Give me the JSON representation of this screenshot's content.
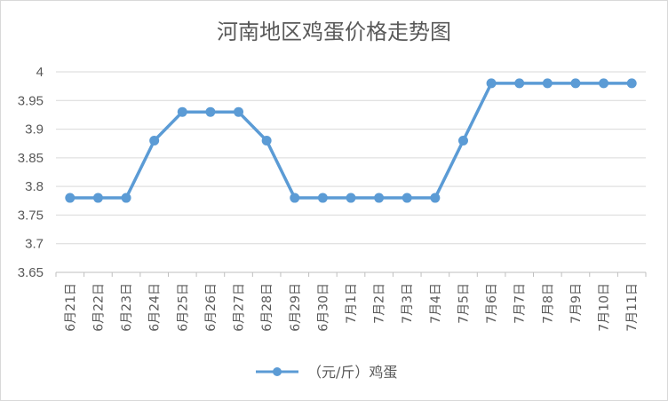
{
  "chart_data": {
    "type": "line",
    "title": "河南地区鸡蛋价格走势图",
    "xlabel": "",
    "ylabel": "",
    "categories": [
      "6月21日",
      "6月22日",
      "6月23日",
      "6月24日",
      "6月25日",
      "6月26日",
      "6月27日",
      "6月28日",
      "6月29日",
      "6月30日",
      "7月1日",
      "7月2日",
      "7月3日",
      "7月4日",
      "7月5日",
      "7月6日",
      "7月7日",
      "7月8日",
      "7月9日",
      "7月10日",
      "7月11日"
    ],
    "series": [
      {
        "name": "（元/斤）鸡蛋",
        "values": [
          3.78,
          3.78,
          3.78,
          3.88,
          3.93,
          3.93,
          3.93,
          3.88,
          3.78,
          3.78,
          3.78,
          3.78,
          3.78,
          3.78,
          3.88,
          3.98,
          3.98,
          3.98,
          3.98,
          3.98,
          3.98
        ]
      }
    ],
    "ylim": [
      3.65,
      4
    ],
    "yticks": [
      "3.65",
      "3.7",
      "3.75",
      "3.8",
      "3.85",
      "3.9",
      "3.95",
      "4"
    ],
    "grid": true,
    "legend_position": "bottom",
    "line_color": "#5b9bd5",
    "marker": "circle"
  }
}
